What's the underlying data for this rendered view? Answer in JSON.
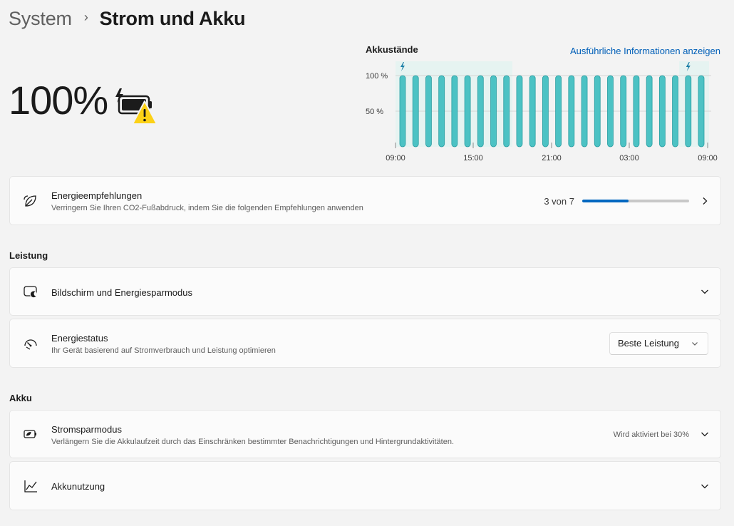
{
  "breadcrumb": {
    "root": "System",
    "separator": "›",
    "current": "Strom und Akku"
  },
  "battery": {
    "level_text": "100%",
    "status_icon": "battery-charging-warning-icon"
  },
  "chart": {
    "title": "Akkustände",
    "link": "Ausführliche Informationen anzeigen"
  },
  "chart_data": {
    "type": "bar",
    "title": "Akkustände",
    "y_ticks": [
      "100 %",
      "50 %"
    ],
    "x_ticks": [
      "09:00",
      "15:00",
      "21:00",
      "03:00",
      "09:00"
    ],
    "ylim": [
      0,
      100
    ],
    "values": [
      100,
      100,
      100,
      100,
      100,
      100,
      100,
      100,
      100,
      100,
      100,
      100,
      100,
      100,
      100,
      100,
      100,
      100,
      100,
      100,
      100,
      100,
      100,
      100
    ],
    "charging_markers": [
      0,
      22
    ],
    "bar_color": "#4cc2c4",
    "grid": true
  },
  "recommendations": {
    "title": "Energieempfehlungen",
    "subtitle": "Verringern Sie Ihren CO2-Fußabdruck, indem Sie die folgenden Empfehlungen anwenden",
    "progress_text": "3 von 7",
    "progress_fraction": 0.43,
    "icon": "leaf-icon"
  },
  "sections": {
    "performance": "Leistung",
    "battery": "Akku"
  },
  "screen_sleep": {
    "title": "Bildschirm und Energiesparmodus",
    "icon": "screen-sleep-icon"
  },
  "power_mode": {
    "title": "Energiestatus",
    "subtitle": "Ihr Gerät basierend auf Stromverbrauch und Leistung optimieren",
    "value": "Beste Leistung",
    "icon": "gauge-icon"
  },
  "battery_saver": {
    "title": "Stromsparmodus",
    "subtitle": "Verlängern Sie die Akkulaufzeit durch das Einschränken bestimmter Benachrichtigungen und Hintergrundaktivitäten.",
    "status": "Wird aktiviert bei 30%",
    "icon": "battery-saver-icon"
  },
  "battery_usage": {
    "title": "Akkunutzung",
    "icon": "line-chart-icon"
  },
  "colors": {
    "accent": "#0067c0",
    "link": "#005fb8",
    "bar": "#4cc2c4",
    "warning": "#fcd116"
  }
}
